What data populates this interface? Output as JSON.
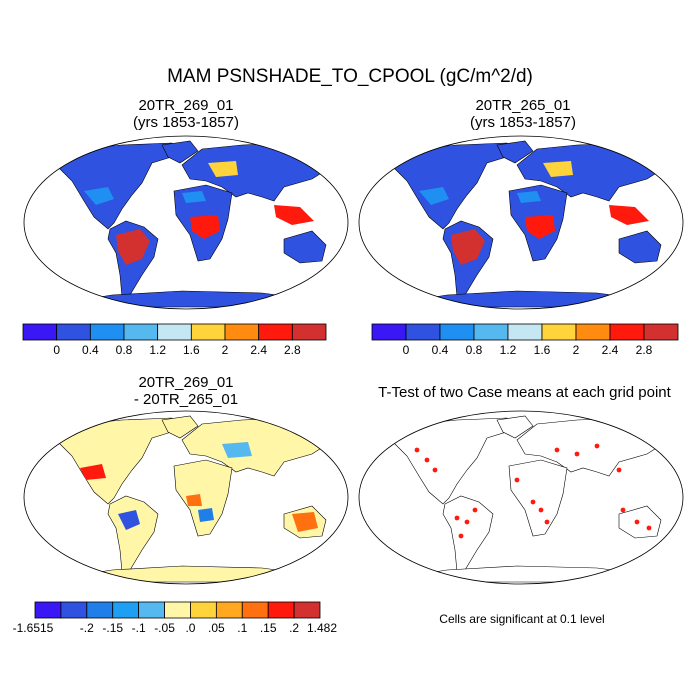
{
  "title": "MAM PSNSHADE_TO_CPOOL (gC/m^2/d)",
  "panels": [
    {
      "id": "p1",
      "title": "20TR_269_01",
      "subtitle": "(yrs 1853-1857)",
      "map_type": "absolute"
    },
    {
      "id": "p2",
      "title": "20TR_265_01",
      "subtitle": "(yrs 1853-1857)",
      "map_type": "absolute"
    },
    {
      "id": "p3",
      "title": "20TR_269_01",
      "subtitle": "- 20TR_265_01",
      "map_type": "difference"
    },
    {
      "id": "p4",
      "title": "T-Test of two Case means at each grid point",
      "subtitle": "",
      "map_type": "significance"
    }
  ],
  "colorbar_absolute": {
    "colors": [
      "#3a17f5",
      "#2f52e0",
      "#1f8ff2",
      "#55b8ee",
      "#c4e7f3",
      "#ffd33c",
      "#ff8c10",
      "#ff1a0d",
      "#d33030"
    ],
    "labels": [
      "0",
      "0.4",
      "0.8",
      "1.2",
      "1.6",
      "2",
      "2.4",
      "2.8"
    ]
  },
  "colorbar_difference": {
    "colors": [
      "#3a17f5",
      "#2f52e0",
      "#1f7ee8",
      "#1f9ff2",
      "#55b8ee",
      "#fff6a8",
      "#ffd33c",
      "#ffa820",
      "#ff7010",
      "#ff1a0d",
      "#d33030"
    ],
    "labels": [
      "-1.6515",
      "-.2",
      "-.15",
      "-.1",
      "-.05",
      ".0",
      ".05",
      ".1",
      ".15",
      ".2",
      "1.482"
    ]
  },
  "significance_note": "Cells are significant at 0.1 level",
  "colors": {
    "land_absolute": "#2f52e0",
    "land_difference": "#fff6a8",
    "significant": "#ff1a0d",
    "coast": "#000000"
  }
}
